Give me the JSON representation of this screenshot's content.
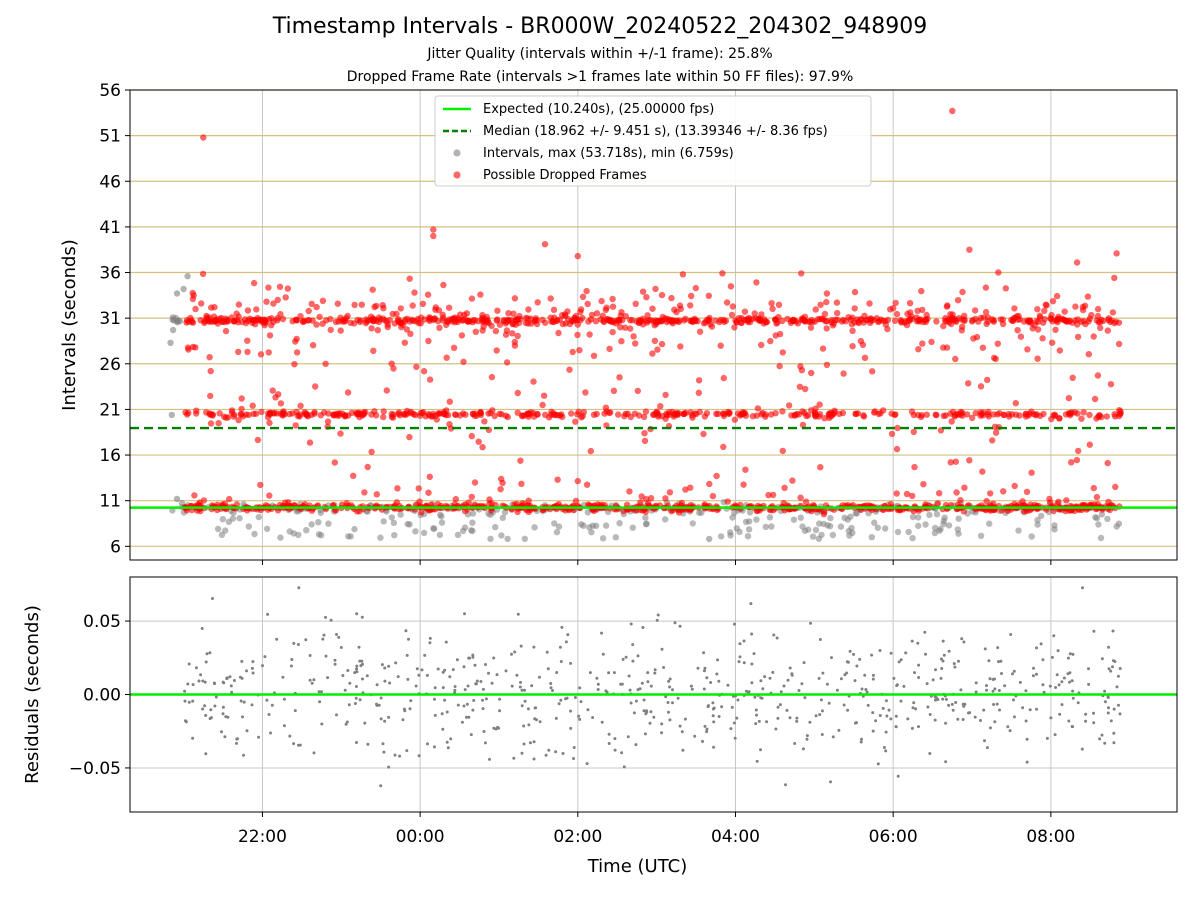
{
  "titles": {
    "main": "Timestamp Intervals - BR000W_20240522_204302_948909",
    "sub1": "Jitter Quality (intervals within +/-1 frame): 25.8%",
    "sub2": "Dropped Frame Rate (intervals >1 frames late within 50 FF files): 97.9%"
  },
  "chart_data": [
    {
      "type": "scatter",
      "panel": "intervals",
      "ylabel": "Intervals (seconds)",
      "ylim": [
        4.5,
        56
      ],
      "yticks": [
        6,
        11,
        16,
        21,
        26,
        31,
        36,
        41,
        46,
        51,
        56
      ],
      "xlim_hours_utc": [
        -3.68,
        9.6
      ],
      "expected_line": 10.24,
      "median_line": 18.962,
      "legend": {
        "placement": "upper center",
        "entries": [
          "Expected (10.240s), (25.00000 fps)",
          "Median (18.962 +/- 9.451 s), (13.39346 +/- 8.36 fps)",
          "Intervals, max (53.718s), min (6.759s)",
          "Possible Dropped Frames"
        ]
      },
      "horizontal_grid_color": "#d4c080",
      "series": [
        {
          "name": "Intervals, max (53.718s), min (6.759s)",
          "color": "#808080",
          "bands": [
            {
              "y": 10.24,
              "x_range": [
                "20:50",
                "08:55"
              ]
            },
            {
              "y": 8.5,
              "spread": 1.7,
              "x_range": [
                "21:20",
                "08:55"
              ]
            }
          ],
          "highlights": [
            {
              "x": "20:50",
              "y": 28.3
            },
            {
              "x": "20:52",
              "y": 29.7
            },
            {
              "x": "20:55",
              "y": 33.7
            },
            {
              "x": "21:00",
              "y": 34.2
            },
            {
              "x": "21:03",
              "y": 35.6
            },
            {
              "x": "20:51",
              "y": 20.4
            },
            {
              "x": "20:55",
              "y": 11.2
            },
            {
              "x": "03:40",
              "y": 6.8
            }
          ]
        },
        {
          "name": "Possible Dropped Frames",
          "color": "#ff0000",
          "bands": [
            {
              "y": 10.24,
              "x_range": [
                "21:00",
                "08:55"
              ]
            },
            {
              "y": 20.48,
              "x_range": [
                "21:00",
                "08:55"
              ]
            },
            {
              "y": 30.72,
              "x_range": [
                "21:00",
                "08:55"
              ]
            }
          ],
          "highlights": [
            {
              "x": "21:15",
              "y": 50.8
            },
            {
              "x": "06:45",
              "y": 53.7
            },
            {
              "x": "00:10",
              "y": 40.7
            },
            {
              "x": "00:10",
              "y": 40.0
            },
            {
              "x": "01:35",
              "y": 39.1
            },
            {
              "x": "06:58",
              "y": 38.5
            },
            {
              "x": "08:50",
              "y": 38.1
            },
            {
              "x": "08:20",
              "y": 37.1
            },
            {
              "x": "02:00",
              "y": 37.8
            },
            {
              "x": "03:20",
              "y": 35.8
            },
            {
              "x": "04:50",
              "y": 35.9
            },
            {
              "x": "07:20",
              "y": 36.0
            }
          ]
        }
      ]
    },
    {
      "type": "scatter",
      "panel": "residuals",
      "ylabel": "Residuals (seconds)",
      "xlabel": "Time (UTC)",
      "ylim": [
        -0.08,
        0.08
      ],
      "yticks": [
        0.05,
        0.0,
        -0.05
      ],
      "ytick_labels": [
        "0.05",
        "0.00",
        "−0.05"
      ],
      "xticks": [
        "22:00",
        "00:00",
        "02:00",
        "04:00",
        "06:00",
        "08:00"
      ],
      "zero_line": 0.0,
      "series": [
        {
          "color": "#808080",
          "x_range": [
            "21:00",
            "08:55"
          ],
          "spread": [
            -0.075,
            0.075
          ]
        }
      ]
    }
  ],
  "colors": {
    "expected": "#00ee00",
    "median": "#008000",
    "intervals": "#808080",
    "dropped": "#ff0000",
    "grid": "#c8c8c8"
  }
}
